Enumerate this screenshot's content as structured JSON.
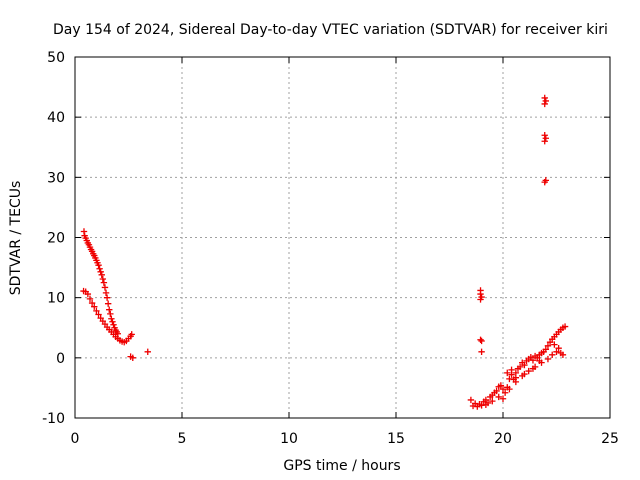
{
  "chart_data": {
    "type": "scatter",
    "title": "Day 154 of 2024, Sidereal Day-to-day VTEC variation (SDTVAR) for receiver kiri",
    "xlabel": "GPS time / hours",
    "ylabel": "SDTVAR / TECUs",
    "xlim": [
      0,
      25
    ],
    "ylim": [
      -10,
      50
    ],
    "xticks": [
      0,
      5,
      10,
      15,
      20,
      25
    ],
    "yticks": [
      -10,
      0,
      10,
      20,
      30,
      40,
      50
    ],
    "xtick_labels": [
      "0",
      "5",
      "10",
      "15",
      "20",
      "25"
    ],
    "ytick_labels": [
      "-10",
      "0",
      "10",
      "20",
      "30",
      "40",
      "50"
    ],
    "grid": true,
    "marker": "plus",
    "color": "#ee0000",
    "series": [
      {
        "values": [
          [
            0.42,
            21.0
          ],
          [
            0.45,
            20.3
          ],
          [
            0.5,
            19.9
          ],
          [
            0.55,
            19.5
          ],
          [
            0.6,
            19.1
          ],
          [
            0.65,
            18.8
          ],
          [
            0.7,
            18.4
          ],
          [
            0.75,
            18.0
          ],
          [
            0.8,
            17.7
          ],
          [
            0.85,
            17.3
          ],
          [
            0.9,
            17.0
          ],
          [
            0.95,
            16.6
          ],
          [
            1.0,
            16.2
          ],
          [
            1.05,
            15.8
          ],
          [
            1.1,
            15.4
          ],
          [
            1.15,
            14.8
          ],
          [
            1.2,
            14.3
          ],
          [
            1.25,
            13.8
          ],
          [
            1.3,
            13.1
          ],
          [
            1.35,
            12.5
          ],
          [
            1.4,
            11.7
          ],
          [
            1.45,
            10.8
          ],
          [
            1.5,
            10.0
          ],
          [
            1.55,
            9.0
          ],
          [
            1.6,
            8.0
          ],
          [
            1.65,
            7.3
          ],
          [
            1.7,
            6.5
          ],
          [
            1.75,
            6.0
          ],
          [
            1.8,
            5.5
          ],
          [
            1.85,
            5.0
          ],
          [
            1.9,
            4.6
          ],
          [
            1.95,
            4.3
          ],
          [
            2.0,
            4.0
          ],
          [
            0.4,
            11.1
          ],
          [
            0.5,
            11.0
          ],
          [
            0.6,
            10.6
          ],
          [
            0.7,
            9.8
          ],
          [
            0.8,
            9.1
          ],
          [
            0.9,
            8.5
          ],
          [
            1.0,
            7.8
          ],
          [
            1.1,
            7.2
          ],
          [
            1.2,
            6.6
          ],
          [
            1.3,
            6.1
          ],
          [
            1.4,
            5.6
          ],
          [
            1.5,
            5.1
          ],
          [
            1.6,
            4.7
          ],
          [
            1.7,
            4.3
          ],
          [
            1.8,
            3.9
          ],
          [
            1.9,
            3.5
          ],
          [
            2.0,
            3.2
          ],
          [
            2.1,
            2.9
          ],
          [
            2.2,
            2.7
          ],
          [
            2.3,
            2.6
          ],
          [
            2.4,
            2.8
          ],
          [
            2.5,
            3.2
          ],
          [
            2.6,
            3.6
          ],
          [
            2.65,
            3.9
          ],
          [
            2.6,
            0.2
          ],
          [
            2.7,
            0.0
          ],
          [
            3.4,
            1.0
          ],
          [
            18.5,
            -7.0
          ],
          [
            18.6,
            -8.0
          ],
          [
            18.7,
            -7.6
          ],
          [
            18.8,
            -8.1
          ],
          [
            18.9,
            -7.7
          ],
          [
            19.0,
            -7.9
          ],
          [
            19.1,
            -7.3
          ],
          [
            19.2,
            -7.0
          ],
          [
            19.3,
            -7.5
          ],
          [
            19.4,
            -6.5
          ],
          [
            19.5,
            -6.2
          ],
          [
            19.6,
            -5.8
          ],
          [
            19.7,
            -5.5
          ],
          [
            19.8,
            -4.8
          ],
          [
            19.9,
            -4.6
          ],
          [
            20.0,
            -5.2
          ],
          [
            20.1,
            -5.8
          ],
          [
            20.2,
            -4.9
          ],
          [
            20.3,
            -3.5
          ],
          [
            20.4,
            -2.8
          ],
          [
            20.5,
            -3.6
          ],
          [
            20.6,
            -2.5
          ],
          [
            20.7,
            -1.8
          ],
          [
            20.8,
            -1.5
          ],
          [
            20.9,
            -0.8
          ],
          [
            21.0,
            -1.2
          ],
          [
            21.1,
            -0.5
          ],
          [
            21.2,
            -0.2
          ],
          [
            21.3,
            0.1
          ],
          [
            21.4,
            -0.4
          ],
          [
            21.5,
            0.3
          ],
          [
            21.6,
            0.0
          ],
          [
            21.7,
            0.5
          ],
          [
            21.8,
            0.8
          ],
          [
            21.9,
            1.0
          ],
          [
            22.0,
            1.4
          ],
          [
            22.1,
            2.0
          ],
          [
            22.2,
            2.6
          ],
          [
            22.3,
            3.1
          ],
          [
            22.4,
            3.5
          ],
          [
            22.5,
            3.9
          ],
          [
            22.6,
            4.3
          ],
          [
            22.7,
            4.7
          ],
          [
            22.8,
            5.0
          ],
          [
            22.9,
            5.2
          ],
          [
            19.2,
            -7.8
          ],
          [
            19.5,
            -7.2
          ],
          [
            19.8,
            -6.5
          ],
          [
            20.0,
            -6.8
          ],
          [
            20.3,
            -5.2
          ],
          [
            20.6,
            -4.0
          ],
          [
            20.9,
            -3.0
          ],
          [
            21.2,
            -2.2
          ],
          [
            21.5,
            -1.5
          ],
          [
            21.8,
            -0.8
          ],
          [
            22.1,
            -0.2
          ],
          [
            22.3,
            0.5
          ],
          [
            22.5,
            1.0
          ],
          [
            22.7,
            0.8
          ],
          [
            22.8,
            0.5
          ],
          [
            22.6,
            1.6
          ],
          [
            22.4,
            2.2
          ],
          [
            20.2,
            -2.5
          ],
          [
            20.4,
            -2.0
          ],
          [
            20.6,
            -3.3
          ],
          [
            21.0,
            -2.7
          ],
          [
            21.4,
            -1.8
          ],
          [
            21.7,
            -0.5
          ],
          [
            18.95,
            11.2
          ],
          [
            18.95,
            10.6
          ],
          [
            19.0,
            10.1
          ],
          [
            18.95,
            9.7
          ],
          [
            18.95,
            3.0
          ],
          [
            19.0,
            2.8
          ],
          [
            19.0,
            1.0
          ],
          [
            21.95,
            43.2
          ],
          [
            22.0,
            42.7
          ],
          [
            21.95,
            42.2
          ],
          [
            21.95,
            37.0
          ],
          [
            22.0,
            36.5
          ],
          [
            21.95,
            36.0
          ],
          [
            22.0,
            29.5
          ],
          [
            21.95,
            29.2
          ]
        ]
      }
    ]
  }
}
